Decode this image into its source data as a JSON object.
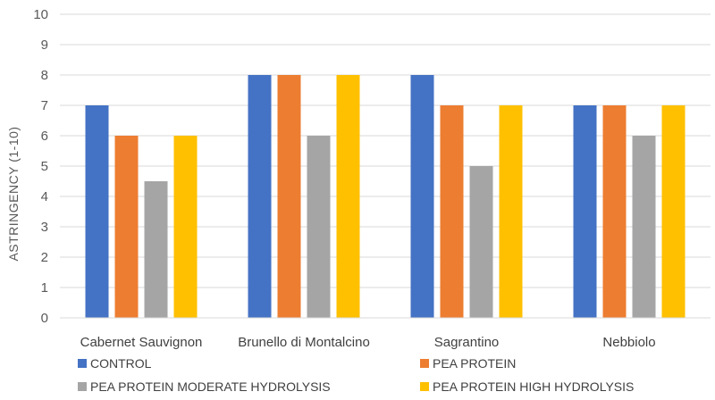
{
  "chart_data": {
    "type": "bar",
    "title": "",
    "xlabel": "",
    "ylabel": "ASTRINGENCY (1-10)",
    "ylim": [
      0,
      10
    ],
    "ytick_step": 1,
    "grid": true,
    "legend_position": "bottom",
    "categories": [
      "Cabernet Sauvignon",
      "Brunello di Montalcino",
      "Sagrantino",
      "Nebbiolo"
    ],
    "series": [
      {
        "name": "CONTROL",
        "color": "#4472C4",
        "values": [
          7,
          8,
          8,
          7
        ]
      },
      {
        "name": "PEA PROTEIN",
        "color": "#ED7D31",
        "values": [
          6,
          8,
          7,
          7
        ]
      },
      {
        "name": "PEA PROTEIN MODERATE HYDROLYSIS",
        "color": "#A5A5A5",
        "values": [
          4.5,
          6,
          5,
          6
        ]
      },
      {
        "name": "PEA PROTEIN HIGH HYDROLYSIS",
        "color": "#FFC000",
        "values": [
          6,
          8,
          7,
          7
        ]
      }
    ]
  }
}
